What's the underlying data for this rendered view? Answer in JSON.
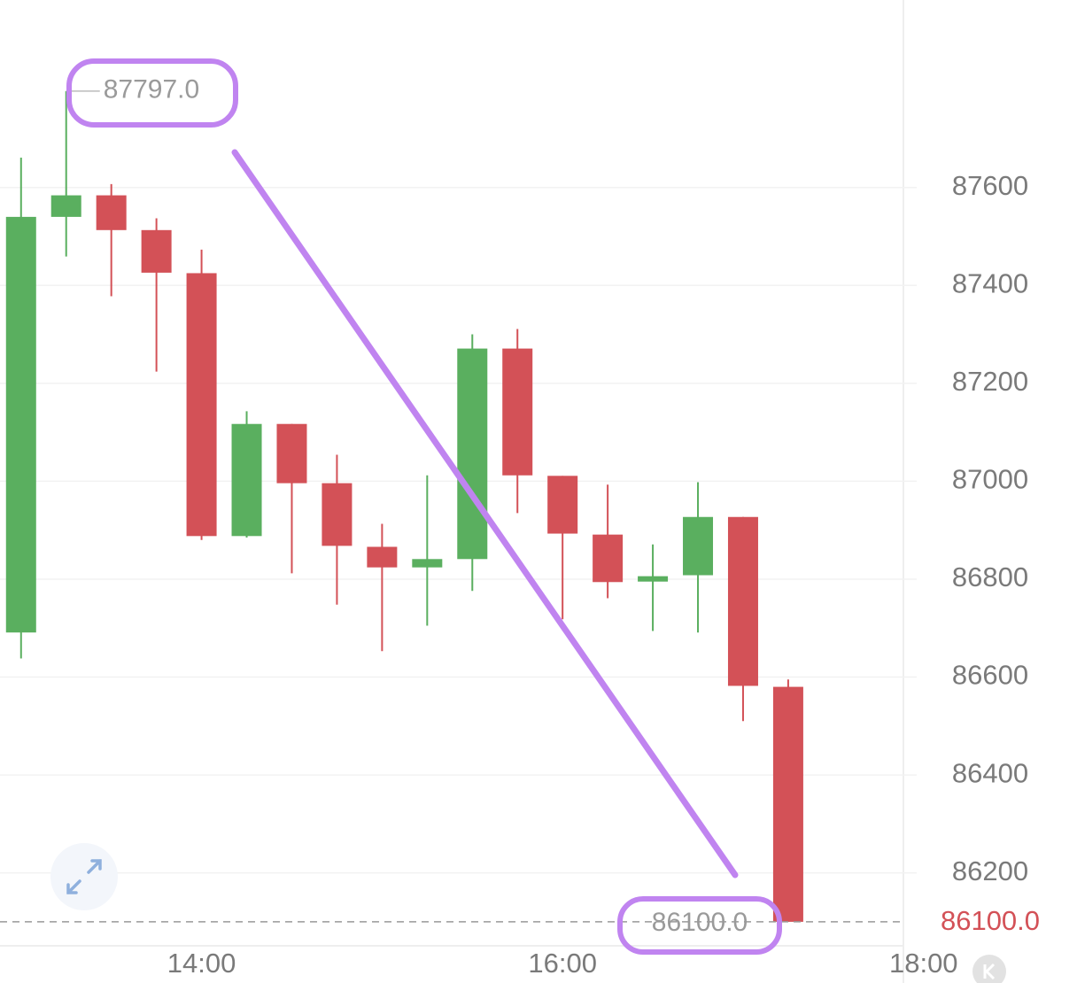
{
  "chart_data": {
    "type": "candlestick",
    "x": [
      "13:00",
      "13:15",
      "13:30",
      "13:45",
      "14:00",
      "14:15",
      "14:30",
      "14:45",
      "15:00",
      "15:15",
      "15:30",
      "15:45",
      "16:00",
      "16:15",
      "16:30",
      "16:45",
      "17:00",
      "17:15"
    ],
    "open": [
      86691,
      87540,
      87584,
      87513,
      87425,
      86888,
      87117,
      86996,
      86866,
      86824,
      86841,
      87271,
      87011,
      86891,
      86795,
      86808,
      86927,
      86580
    ],
    "high": [
      87661,
      87797,
      87607,
      87537,
      87473,
      87143,
      87117,
      87054,
      86913,
      87012,
      87300,
      87311,
      87011,
      86993,
      86871,
      86998,
      86927,
      86595
    ],
    "low": [
      86638,
      87459,
      87378,
      87224,
      86880,
      86885,
      86812,
      86748,
      86653,
      86705,
      86776,
      86935,
      86718,
      86761,
      86694,
      86691,
      86510,
      86100
    ],
    "close": [
      87540,
      87584,
      87513,
      87426,
      86888,
      87117,
      86996,
      86868,
      86824,
      86841,
      87271,
      87012,
      86893,
      86794,
      86806,
      86927,
      86582,
      86100
    ],
    "up_color": "#5aaf5f",
    "down_color": "#d35157",
    "xlim": [
      "12:53",
      "18:51"
    ],
    "xticks": [
      "14:00",
      "16:00",
      "18:00"
    ],
    "ylim": [
      86051,
      87983
    ],
    "yticks": [
      86200,
      86400,
      86600,
      86800,
      87000,
      87200,
      87400,
      87600
    ],
    "grid": true,
    "max_label": "87797.0",
    "min_label": "86100.0",
    "last_price": 86100,
    "last_price_label": "86100.0"
  }
}
